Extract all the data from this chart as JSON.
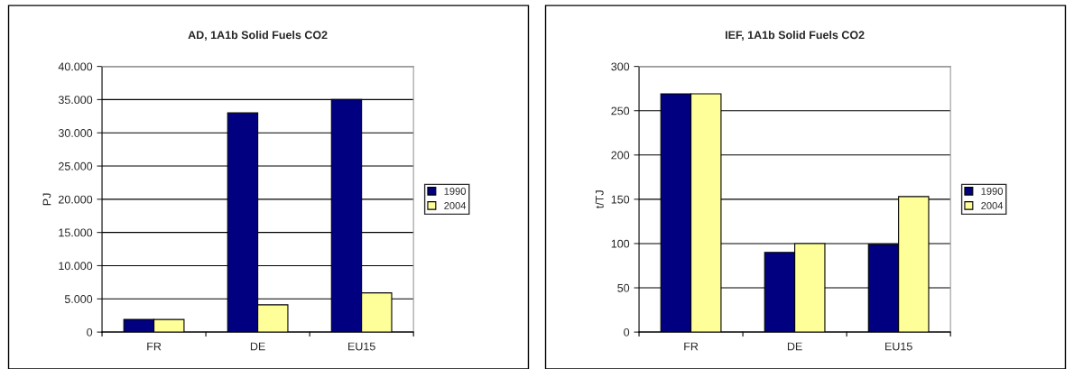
{
  "chart_data": [
    {
      "type": "bar",
      "title": "AD, 1A1b Solid Fuels CO2",
      "ylabel": "PJ",
      "categories": [
        "FR",
        "DE",
        "EU15"
      ],
      "series": [
        {
          "name": "1990",
          "color": "#000080",
          "values": [
            1900,
            33000,
            35000
          ]
        },
        {
          "name": "2004",
          "color": "#ffff99",
          "values": [
            1900,
            4100,
            5900
          ]
        }
      ],
      "ylim": [
        0,
        40000
      ],
      "yticks": [
        0,
        {
          "value": 5000,
          "label": "5.000"
        },
        {
          "value": 10000,
          "label": "10.000"
        },
        {
          "value": 15000,
          "label": "15.000"
        },
        {
          "value": 20000,
          "label": "20.000"
        },
        {
          "value": 25000,
          "label": "25.000"
        },
        {
          "value": 30000,
          "label": "30.000"
        },
        {
          "value": 35000,
          "label": "35.000"
        },
        {
          "value": 40000,
          "label": "40.000"
        }
      ],
      "grid": "y",
      "legend": "right"
    },
    {
      "type": "bar",
      "title": "IEF, 1A1b Solid Fuels CO2",
      "ylabel": "t/TJ",
      "categories": [
        "FR",
        "DE",
        "EU15"
      ],
      "series": [
        {
          "name": "1990",
          "color": "#000080",
          "values": [
            269,
            90,
            99
          ]
        },
        {
          "name": "2004",
          "color": "#ffff99",
          "values": [
            269,
            100,
            153
          ]
        }
      ],
      "ylim": [
        0,
        300
      ],
      "yticks": [
        0,
        50,
        100,
        150,
        200,
        250,
        300
      ],
      "grid": "y",
      "legend": "right"
    }
  ]
}
